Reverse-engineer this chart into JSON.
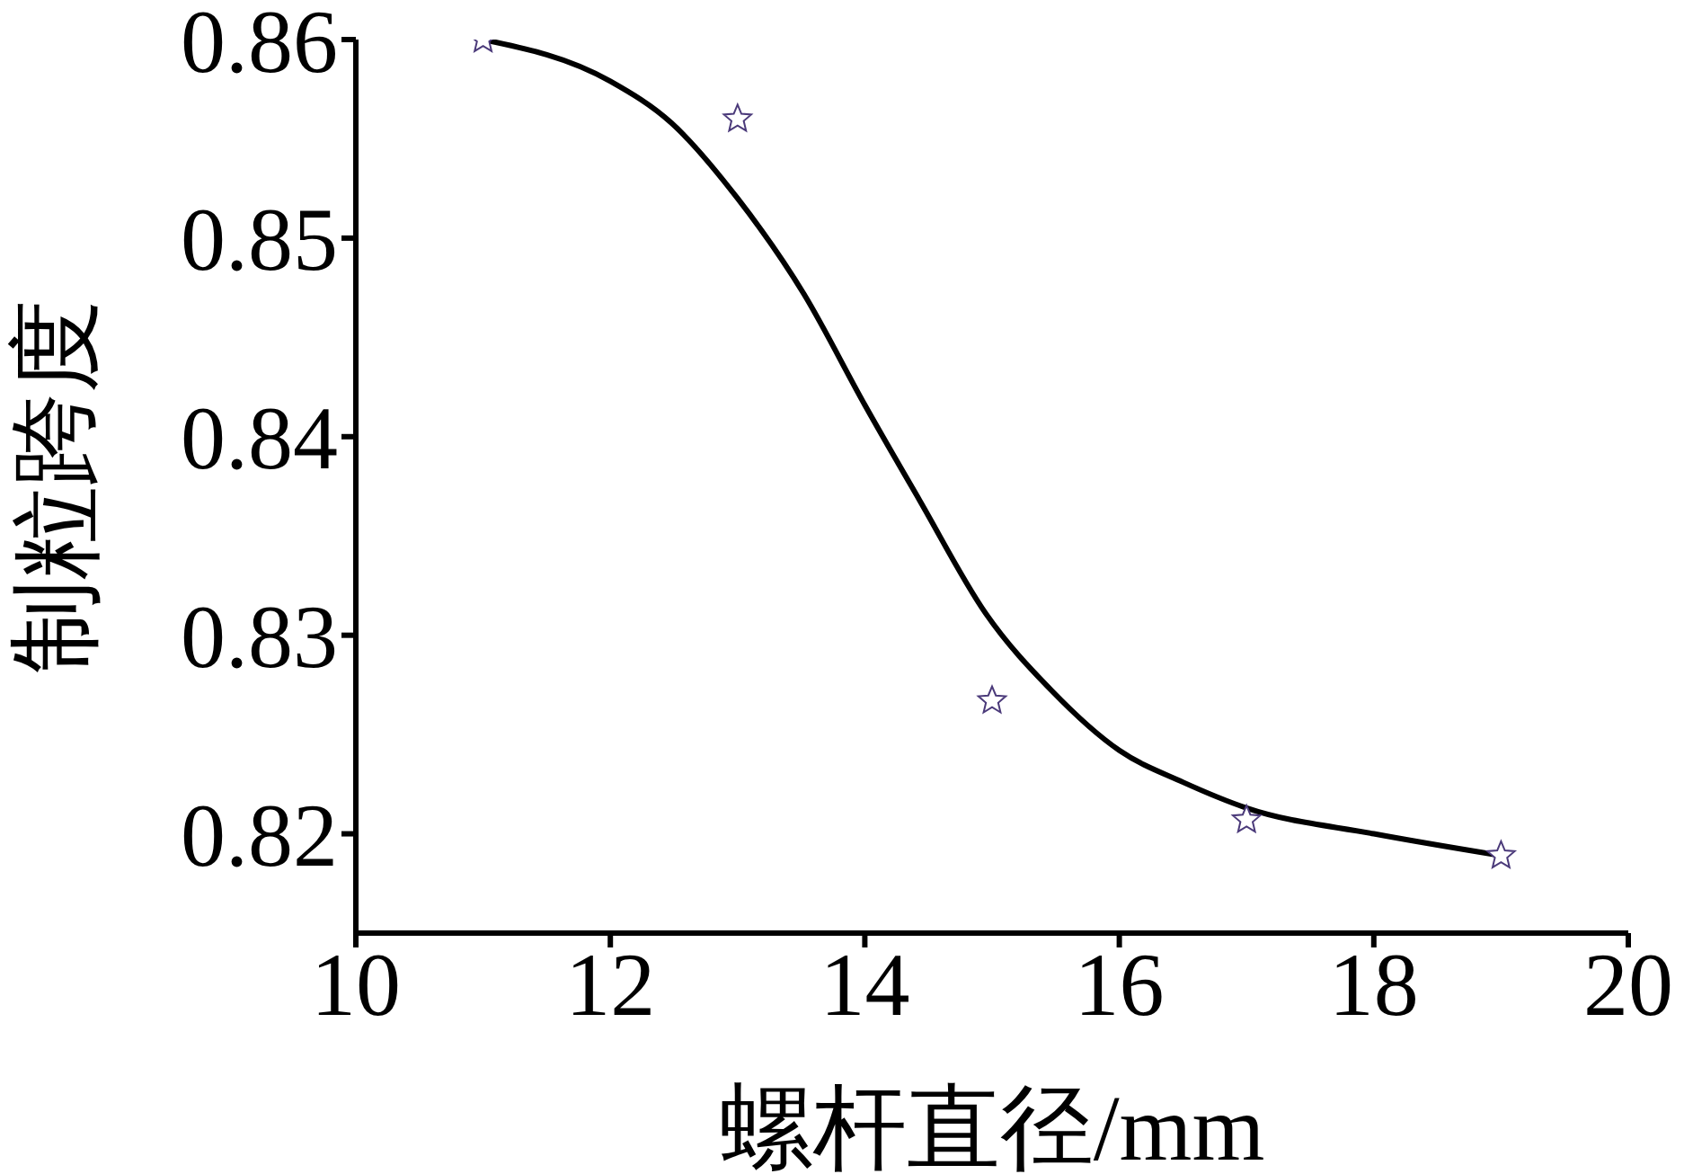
{
  "chart_data": {
    "type": "scatter",
    "xlabel": "螺杆直径/mm",
    "ylabel": "制粒跨度",
    "xlim": [
      10,
      20
    ],
    "xticks": [
      10,
      12,
      14,
      16,
      18,
      20
    ],
    "ylim": [
      0.815,
      0.86
    ],
    "yticks": [
      0.82,
      0.83,
      0.84,
      0.85,
      0.86
    ],
    "grid": false,
    "legend": false,
    "series": [
      {
        "marker": "star",
        "color": "#4b3a7a",
        "x": [
          11,
          13,
          15,
          17,
          19
        ],
        "values": [
          0.86,
          0.856,
          0.8267,
          0.8207,
          0.8189
        ]
      },
      {
        "type": "line",
        "marker": "none",
        "color": "#000000",
        "x": [
          11,
          12,
          12.48,
          13,
          13.52,
          14,
          14.43,
          14.95,
          15.47,
          16,
          16.5,
          17,
          18,
          19
        ],
        "values": [
          0.86,
          0.8579,
          0.8558,
          0.852,
          0.8472,
          0.8416,
          0.8368,
          0.8311,
          0.8272,
          0.8242,
          0.8226,
          0.8213,
          0.82,
          0.8189
        ]
      }
    ]
  }
}
